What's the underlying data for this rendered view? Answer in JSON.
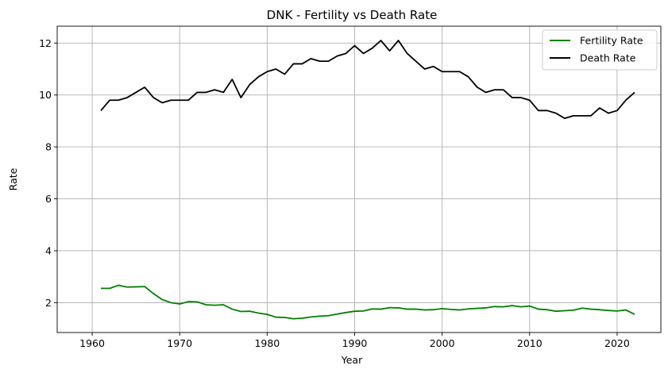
{
  "chart_data": {
    "type": "line",
    "title": "DNK - Fertility vs Death Rate",
    "xlabel": "Year",
    "ylabel": "Rate",
    "xlim": [
      1956,
      2025
    ],
    "ylim": [
      0.85,
      12.65
    ],
    "xticks": [
      1960,
      1970,
      1980,
      1990,
      2000,
      2010,
      2020
    ],
    "yticks": [
      2,
      4,
      6,
      8,
      10,
      12
    ],
    "grid": true,
    "legend_position": "top-right",
    "x": [
      1961,
      1962,
      1963,
      1964,
      1965,
      1966,
      1967,
      1968,
      1969,
      1970,
      1971,
      1972,
      1973,
      1974,
      1975,
      1976,
      1977,
      1978,
      1979,
      1980,
      1981,
      1982,
      1983,
      1984,
      1985,
      1986,
      1987,
      1988,
      1989,
      1990,
      1991,
      1992,
      1993,
      1994,
      1995,
      1996,
      1997,
      1998,
      1999,
      2000,
      2001,
      2002,
      2003,
      2004,
      2005,
      2006,
      2007,
      2008,
      2009,
      2010,
      2011,
      2012,
      2013,
      2014,
      2015,
      2016,
      2017,
      2018,
      2019,
      2020,
      2021,
      2022
    ],
    "series": [
      {
        "name": "Fertility Rate",
        "color": "#008000",
        "values": [
          2.55,
          2.55,
          2.67,
          2.6,
          2.61,
          2.62,
          2.35,
          2.12,
          2.0,
          1.95,
          2.04,
          2.03,
          1.92,
          1.9,
          1.92,
          1.75,
          1.66,
          1.67,
          1.6,
          1.55,
          1.44,
          1.43,
          1.38,
          1.4,
          1.45,
          1.48,
          1.5,
          1.56,
          1.62,
          1.67,
          1.68,
          1.76,
          1.75,
          1.81,
          1.8,
          1.75,
          1.75,
          1.72,
          1.73,
          1.77,
          1.74,
          1.72,
          1.76,
          1.78,
          1.8,
          1.85,
          1.84,
          1.89,
          1.84,
          1.87,
          1.75,
          1.73,
          1.67,
          1.69,
          1.71,
          1.79,
          1.75,
          1.73,
          1.7,
          1.68,
          1.72,
          1.55
        ]
      },
      {
        "name": "Death Rate",
        "color": "#000000",
        "values": [
          9.4,
          9.8,
          9.8,
          9.9,
          10.1,
          10.3,
          9.9,
          9.7,
          9.8,
          9.8,
          9.8,
          10.1,
          10.1,
          10.2,
          10.1,
          10.6,
          9.9,
          10.4,
          10.7,
          10.9,
          11.0,
          10.8,
          11.2,
          11.2,
          11.4,
          11.3,
          11.3,
          11.5,
          11.6,
          11.9,
          11.6,
          11.8,
          12.1,
          11.7,
          12.1,
          11.6,
          11.3,
          11.0,
          11.1,
          10.9,
          10.9,
          10.9,
          10.7,
          10.3,
          10.1,
          10.2,
          10.2,
          9.9,
          9.9,
          9.8,
          9.4,
          9.4,
          9.3,
          9.1,
          9.2,
          9.2,
          9.2,
          9.5,
          9.3,
          9.4,
          9.8,
          10.1
        ]
      }
    ]
  }
}
